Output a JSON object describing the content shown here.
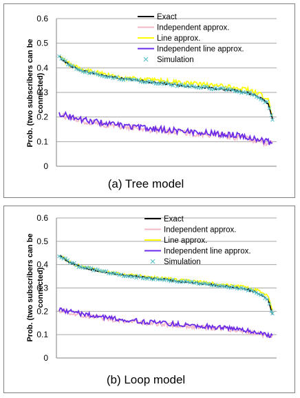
{
  "chart_data": [
    {
      "type": "line",
      "caption": "(a) Tree model",
      "ylabel_line1": "Prob. (two subscribers can be",
      "ylabel_line2": "connected)",
      "ylim": [
        0,
        0.6
      ],
      "yticks": [
        "0",
        "0.1",
        "0.2",
        "0.3",
        "0.4",
        "0.5",
        "0.6"
      ],
      "grid": true,
      "legend_position": "top-right",
      "x_points": 200,
      "series": [
        {
          "name": "Exact",
          "color": "#000000",
          "style": "line",
          "anchors": [
            [
              0,
              0.445
            ],
            [
              10,
              0.41
            ],
            [
              20,
              0.39
            ],
            [
              40,
              0.37
            ],
            [
              60,
              0.355
            ],
            [
              80,
              0.345
            ],
            [
              100,
              0.335
            ],
            [
              120,
              0.325
            ],
            [
              140,
              0.318
            ],
            [
              160,
              0.31
            ],
            [
              175,
              0.3
            ],
            [
              185,
              0.285
            ],
            [
              195,
              0.255
            ],
            [
              199,
              0.19
            ]
          ],
          "noise": 0.004
        },
        {
          "name": "Independent approx.",
          "color": "#f2b8c6",
          "style": "line",
          "anchors": [
            [
              0,
              0.21
            ],
            [
              20,
              0.185
            ],
            [
              50,
              0.165
            ],
            [
              80,
              0.15
            ],
            [
              110,
              0.14
            ],
            [
              140,
              0.128
            ],
            [
              170,
              0.115
            ],
            [
              199,
              0.09
            ]
          ],
          "noise": 0.012
        },
        {
          "name": "Line approx.",
          "color": "#ffff00",
          "style": "line",
          "anchors": [
            [
              0,
              0.445
            ],
            [
              10,
              0.415
            ],
            [
              20,
              0.395
            ],
            [
              40,
              0.375
            ],
            [
              60,
              0.36
            ],
            [
              80,
              0.352
            ],
            [
              100,
              0.345
            ],
            [
              120,
              0.338
            ],
            [
              140,
              0.33
            ],
            [
              160,
              0.322
            ],
            [
              175,
              0.312
            ],
            [
              185,
              0.298
            ],
            [
              195,
              0.27
            ],
            [
              199,
              0.2
            ]
          ],
          "noise": 0.009
        },
        {
          "name": "Independent line approx.",
          "color": "#6a2ae8",
          "style": "line",
          "anchors": [
            [
              0,
              0.215
            ],
            [
              20,
              0.19
            ],
            [
              50,
              0.17
            ],
            [
              80,
              0.155
            ],
            [
              110,
              0.145
            ],
            [
              140,
              0.135
            ],
            [
              170,
              0.125
            ],
            [
              199,
              0.095
            ]
          ],
          "noise": 0.012
        },
        {
          "name": "Simulation",
          "color": "#5bc0c8",
          "style": "marker",
          "anchors": [
            [
              0,
              0.445
            ],
            [
              10,
              0.41
            ],
            [
              20,
              0.39
            ],
            [
              40,
              0.37
            ],
            [
              60,
              0.355
            ],
            [
              80,
              0.345
            ],
            [
              100,
              0.335
            ],
            [
              120,
              0.325
            ],
            [
              140,
              0.318
            ],
            [
              160,
              0.31
            ],
            [
              175,
              0.3
            ],
            [
              185,
              0.285
            ],
            [
              195,
              0.255
            ],
            [
              199,
              0.19
            ]
          ],
          "noise": 0.005
        }
      ]
    },
    {
      "type": "line",
      "caption": "(b) Loop model",
      "ylabel_line1": "Prob. (two subscribers can be",
      "ylabel_line2": "connected)",
      "ylim": [
        0,
        0.6
      ],
      "yticks": [
        "0",
        "0.1",
        "0.2",
        "0.3",
        "0.4",
        "0.5",
        "0.6"
      ],
      "grid": true,
      "legend_position": "top-right",
      "x_points": 200,
      "series": [
        {
          "name": "Exact",
          "color": "#000000",
          "style": "line",
          "anchors": [
            [
              0,
              0.44
            ],
            [
              10,
              0.41
            ],
            [
              20,
              0.39
            ],
            [
              40,
              0.37
            ],
            [
              60,
              0.355
            ],
            [
              80,
              0.345
            ],
            [
              100,
              0.335
            ],
            [
              120,
              0.325
            ],
            [
              140,
              0.315
            ],
            [
              160,
              0.305
            ],
            [
              175,
              0.295
            ],
            [
              185,
              0.28
            ],
            [
              195,
              0.25
            ],
            [
              199,
              0.19
            ]
          ],
          "noise": 0.004
        },
        {
          "name": "Independent approx.",
          "color": "#f2b8c6",
          "style": "line",
          "anchors": [
            [
              0,
              0.205
            ],
            [
              20,
              0.185
            ],
            [
              50,
              0.165
            ],
            [
              80,
              0.15
            ],
            [
              110,
              0.14
            ],
            [
              140,
              0.13
            ],
            [
              170,
              0.118
            ],
            [
              199,
              0.09
            ]
          ],
          "noise": 0.01
        },
        {
          "name": "Line approx.",
          "color": "#ffff00",
          "style": "line",
          "anchors": [
            [
              0,
              0.44
            ],
            [
              10,
              0.412
            ],
            [
              20,
              0.392
            ],
            [
              40,
              0.372
            ],
            [
              60,
              0.358
            ],
            [
              80,
              0.348
            ],
            [
              100,
              0.34
            ],
            [
              120,
              0.332
            ],
            [
              140,
              0.322
            ],
            [
              160,
              0.312
            ],
            [
              175,
              0.302
            ],
            [
              185,
              0.29
            ],
            [
              195,
              0.262
            ],
            [
              199,
              0.2
            ]
          ],
          "noise": 0.006
        },
        {
          "name": "Independent line approx.",
          "color": "#6a2ae8",
          "style": "line",
          "anchors": [
            [
              0,
              0.21
            ],
            [
              20,
              0.19
            ],
            [
              50,
              0.17
            ],
            [
              80,
              0.155
            ],
            [
              110,
              0.145
            ],
            [
              140,
              0.135
            ],
            [
              170,
              0.122
            ],
            [
              199,
              0.095
            ]
          ],
          "noise": 0.01
        },
        {
          "name": "Simulation",
          "color": "#5bc0c8",
          "style": "marker",
          "anchors": [
            [
              0,
              0.44
            ],
            [
              10,
              0.41
            ],
            [
              20,
              0.39
            ],
            [
              40,
              0.37
            ],
            [
              60,
              0.355
            ],
            [
              80,
              0.345
            ],
            [
              100,
              0.335
            ],
            [
              120,
              0.325
            ],
            [
              140,
              0.315
            ],
            [
              160,
              0.305
            ],
            [
              175,
              0.295
            ],
            [
              185,
              0.28
            ],
            [
              195,
              0.25
            ],
            [
              199,
              0.19
            ]
          ],
          "noise": 0.005
        }
      ]
    }
  ]
}
